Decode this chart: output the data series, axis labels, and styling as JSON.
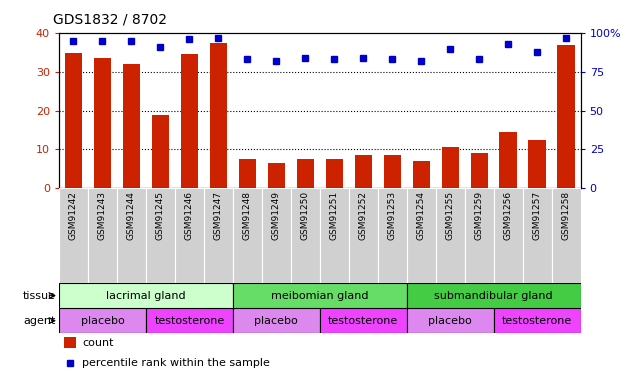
{
  "title": "GDS1832 / 8702",
  "samples": [
    "GSM91242",
    "GSM91243",
    "GSM91244",
    "GSM91245",
    "GSM91246",
    "GSM91247",
    "GSM91248",
    "GSM91249",
    "GSM91250",
    "GSM91251",
    "GSM91252",
    "GSM91253",
    "GSM91254",
    "GSM91255",
    "GSM91259",
    "GSM91256",
    "GSM91257",
    "GSM91258"
  ],
  "counts": [
    35,
    33.5,
    32,
    19,
    34.5,
    37.5,
    7.5,
    6.5,
    7.5,
    7.5,
    8.5,
    8.5,
    7,
    10.5,
    9,
    14.5,
    12.5,
    37
  ],
  "percentiles": [
    95,
    95,
    95,
    91,
    96,
    97,
    83,
    82,
    84,
    83,
    84,
    83,
    82,
    90,
    83,
    93,
    88,
    97
  ],
  "ylim_left": [
    0,
    40
  ],
  "ylim_right": [
    0,
    100
  ],
  "yticks_left": [
    0,
    10,
    20,
    30,
    40
  ],
  "yticks_right": [
    0,
    25,
    50,
    75,
    100
  ],
  "bar_color": "#cc2200",
  "dot_color": "#0000cc",
  "tissue_groups": [
    {
      "label": "lacrimal gland",
      "start": 0,
      "end": 6,
      "color": "#ccffcc"
    },
    {
      "label": "meibomian gland",
      "start": 6,
      "end": 12,
      "color": "#66dd66"
    },
    {
      "label": "submandibular gland",
      "start": 12,
      "end": 18,
      "color": "#44cc44"
    }
  ],
  "agent_groups": [
    {
      "label": "placebo",
      "start": 0,
      "end": 3,
      "color": "#dd88ee"
    },
    {
      "label": "testosterone",
      "start": 3,
      "end": 6,
      "color": "#ee44ff"
    },
    {
      "label": "placebo",
      "start": 6,
      "end": 9,
      "color": "#dd88ee"
    },
    {
      "label": "testosterone",
      "start": 9,
      "end": 12,
      "color": "#ee44ff"
    },
    {
      "label": "placebo",
      "start": 12,
      "end": 15,
      "color": "#dd88ee"
    },
    {
      "label": "testosterone",
      "start": 15,
      "end": 18,
      "color": "#ee44ff"
    }
  ],
  "legend_count_label": "count",
  "legend_pct_label": "percentile rank within the sample",
  "tissue_label": "tissue",
  "agent_label": "agent"
}
